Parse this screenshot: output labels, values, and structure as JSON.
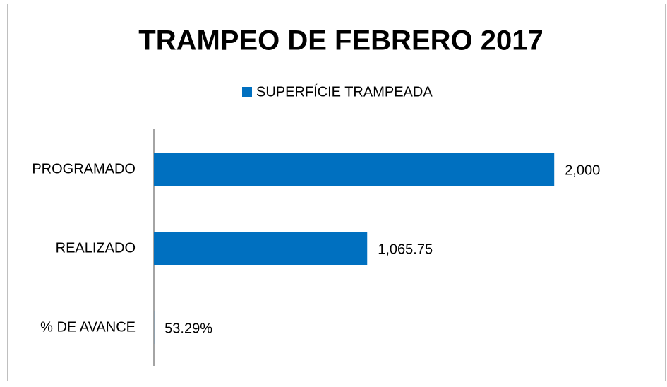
{
  "chart_data": {
    "type": "bar",
    "orientation": "horizontal",
    "title": "TRAMPEO DE FEBRERO 2017",
    "categories": [
      "PROGRAMADO",
      "REALIZADO",
      "% DE AVANCE"
    ],
    "series": [
      {
        "name": "SUPERFÍCIE TRAMPEADA",
        "color": "#0070c0",
        "values": [
          2000,
          1065.75,
          0.5329
        ],
        "value_labels": [
          "2,000",
          "1,065.75",
          "53.29%"
        ]
      }
    ],
    "xlim": [
      0,
      2500
    ],
    "legend": "top"
  }
}
